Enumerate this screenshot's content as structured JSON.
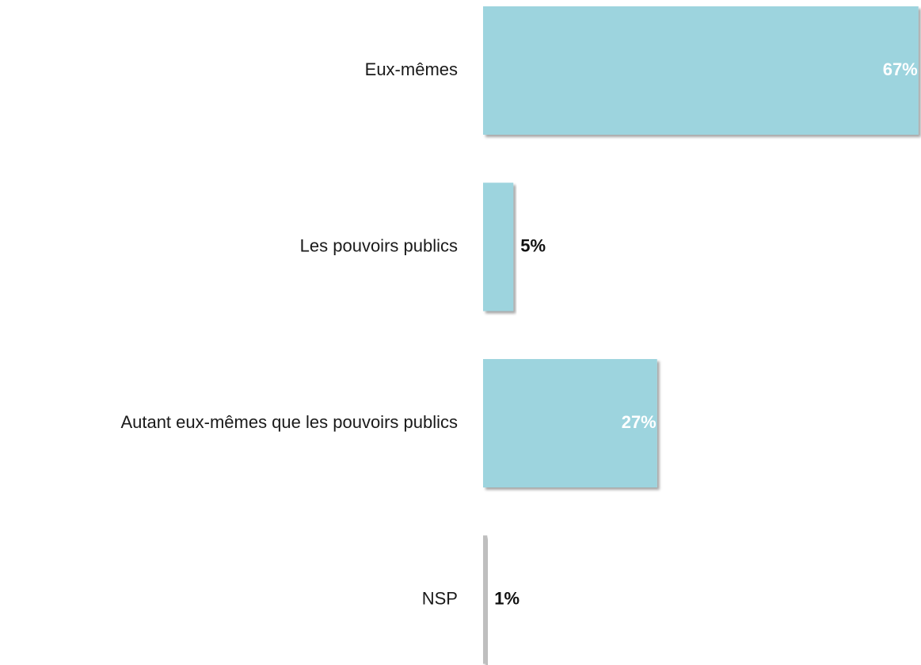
{
  "chart_data": {
    "type": "bar",
    "orientation": "horizontal",
    "categories": [
      "Eux-mêmes",
      "Les pouvoirs publics",
      "Autant eux-mêmes que les pouvoirs publics",
      "NSP"
    ],
    "values": [
      67,
      5,
      27,
      1
    ],
    "value_labels": [
      "67%",
      "5%",
      "27%",
      "1%"
    ],
    "colors": [
      "#9dd4de",
      "#9dd4de",
      "#9dd4de",
      "#bfbfbf"
    ]
  }
}
